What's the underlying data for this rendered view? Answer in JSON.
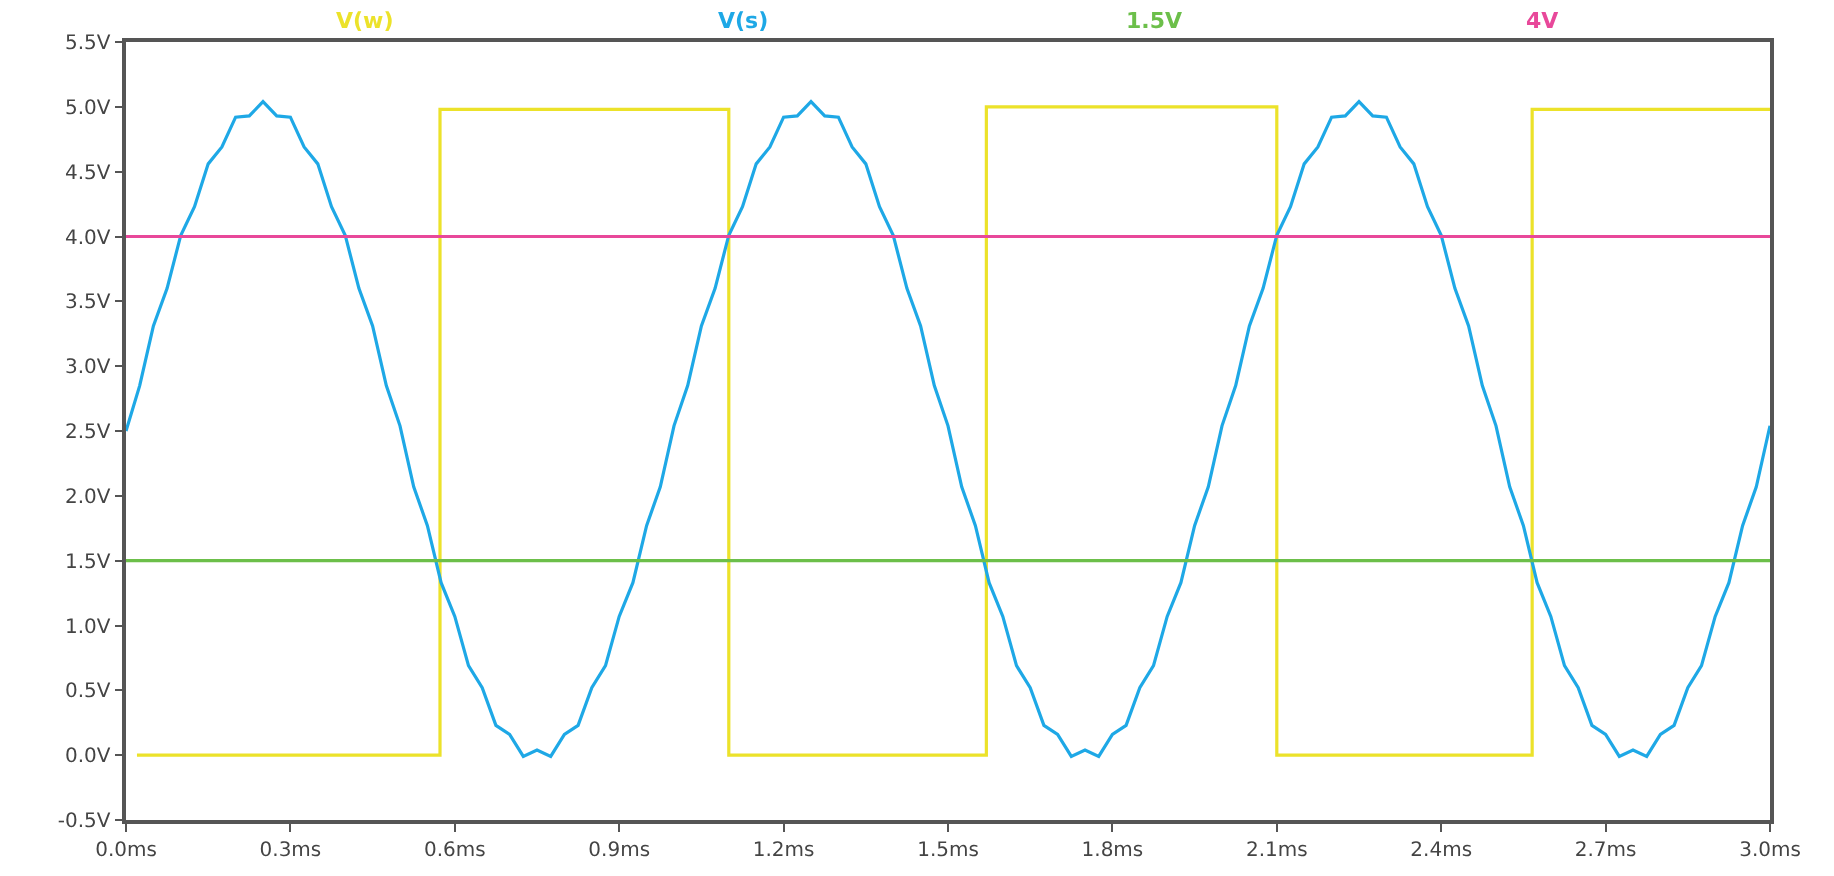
{
  "chart_data": {
    "type": "line",
    "legend": "top",
    "grid": false,
    "marker": "none",
    "line_style": "solid",
    "xlim": [
      0,
      3
    ],
    "ylim": [
      -0.5,
      5.5
    ],
    "xticks": [
      {
        "value": 0,
        "label": "0.0ms"
      },
      {
        "value": 0.3,
        "label": "0.3ms"
      },
      {
        "value": 0.6,
        "label": "0.6ms"
      },
      {
        "value": 0.9,
        "label": "0.9ms"
      },
      {
        "value": 1.2,
        "label": "1.2ms"
      },
      {
        "value": 1.5,
        "label": "1.5ms"
      },
      {
        "value": 1.8,
        "label": "1.8ms"
      },
      {
        "value": 2.1,
        "label": "2.1ms"
      },
      {
        "value": 2.4,
        "label": "2.4ms"
      },
      {
        "value": 2.7,
        "label": "2.7ms"
      },
      {
        "value": 3,
        "label": "3.0ms"
      }
    ],
    "yticks": [
      {
        "value": -0.5,
        "label": "-0.5V"
      },
      {
        "value": 0,
        "label": "0.0V"
      },
      {
        "value": 0.5,
        "label": "0.5V"
      },
      {
        "value": 1,
        "label": "1.0V"
      },
      {
        "value": 1.5,
        "label": "1.5V"
      },
      {
        "value": 2,
        "label": "2.0V"
      },
      {
        "value": 2.5,
        "label": "2.5V"
      },
      {
        "value": 3,
        "label": "3.0V"
      },
      {
        "value": 3.5,
        "label": "3.5V"
      },
      {
        "value": 4,
        "label": "4.0V"
      },
      {
        "value": 4.5,
        "label": "4.5V"
      },
      {
        "value": 5,
        "label": "5.0V"
      },
      {
        "value": 5.5,
        "label": "5.5V"
      }
    ],
    "series": [
      {
        "name": "V(w)",
        "color": "#ece22a",
        "x": [
          0.02,
          0.573,
          0.573,
          1.1,
          1.1,
          1.57,
          1.57,
          2.1,
          2.1,
          2.566,
          2.566,
          3
        ],
        "values": [
          0,
          0,
          4.98,
          4.98,
          0,
          0,
          5,
          5,
          0,
          0,
          4.98,
          4.98
        ]
      },
      {
        "name": "V(s)",
        "color": "#1ea8e6",
        "x": [
          0,
          0.025,
          0.05,
          0.075,
          0.1,
          0.125,
          0.15,
          0.175,
          0.2,
          0.225,
          0.25,
          0.275,
          0.3,
          0.325,
          0.35,
          0.375,
          0.4,
          0.425,
          0.45,
          0.475,
          0.5,
          0.525,
          0.55,
          0.575,
          0.6,
          0.625,
          0.65,
          0.675,
          0.7,
          0.725,
          0.75,
          0.775,
          0.8,
          0.825,
          0.85,
          0.875,
          0.9,
          0.925,
          0.95,
          0.975,
          1,
          1.025,
          1.05,
          1.075,
          1.1,
          1.125,
          1.15,
          1.175,
          1.2,
          1.225,
          1.25,
          1.275,
          1.3,
          1.325,
          1.35,
          1.375,
          1.4,
          1.425,
          1.45,
          1.475,
          1.5,
          1.525,
          1.55,
          1.575,
          1.6,
          1.625,
          1.65,
          1.675,
          1.7,
          1.725,
          1.75,
          1.775,
          1.8,
          1.825,
          1.85,
          1.875,
          1.9,
          1.925,
          1.95,
          1.975,
          2,
          2.025,
          2.05,
          2.075,
          2.1,
          2.125,
          2.15,
          2.175,
          2.2,
          2.225,
          2.25,
          2.275,
          2.3,
          2.325,
          2.35,
          2.375,
          2.4,
          2.425,
          2.45,
          2.475,
          2.5,
          2.525,
          2.55,
          2.575,
          2.6,
          2.625,
          2.65,
          2.675,
          2.7,
          2.725,
          2.75,
          2.775,
          2.8,
          2.825,
          2.85,
          2.875,
          2.9,
          2.925,
          2.95,
          2.975,
          3
        ],
        "values": [
          2.5,
          2.85,
          3.31,
          3.6,
          4.01,
          4.23,
          4.56,
          4.69,
          4.92,
          4.93,
          5.04,
          4.93,
          4.92,
          4.69,
          4.56,
          4.23,
          4.01,
          3.6,
          3.31,
          2.85,
          2.54,
          2.07,
          1.77,
          1.33,
          1.07,
          0.69,
          0.52,
          0.23,
          0.16,
          -0.01,
          0.04,
          -0.01,
          0.16,
          0.23,
          0.52,
          0.69,
          1.07,
          1.33,
          1.77,
          2.07,
          2.54,
          2.85,
          3.31,
          3.6,
          4.01,
          4.23,
          4.56,
          4.69,
          4.92,
          4.93,
          5.04,
          4.93,
          4.92,
          4.69,
          4.56,
          4.23,
          4.01,
          3.6,
          3.31,
          2.85,
          2.54,
          2.07,
          1.77,
          1.33,
          1.07,
          0.69,
          0.52,
          0.23,
          0.16,
          -0.01,
          0.04,
          -0.01,
          0.16,
          0.23,
          0.52,
          0.69,
          1.07,
          1.33,
          1.77,
          2.07,
          2.54,
          2.85,
          3.31,
          3.6,
          4.01,
          4.23,
          4.56,
          4.69,
          4.92,
          4.93,
          5.04,
          4.93,
          4.92,
          4.69,
          4.56,
          4.23,
          4.01,
          3.6,
          3.31,
          2.85,
          2.54,
          2.07,
          1.77,
          1.33,
          1.07,
          0.69,
          0.52,
          0.23,
          0.16,
          -0.01,
          0.04,
          -0.01,
          0.16,
          0.23,
          0.52,
          0.69,
          1.07,
          1.33,
          1.77,
          2.07,
          2.54
        ]
      },
      {
        "name": "1.5V",
        "color": "#6cbf4a",
        "x": [
          0,
          3
        ],
        "values": [
          1.5,
          1.5
        ]
      },
      {
        "name": "4V",
        "color": "#e8489a",
        "x": [
          0,
          3
        ],
        "values": [
          4,
          4
        ]
      }
    ]
  }
}
